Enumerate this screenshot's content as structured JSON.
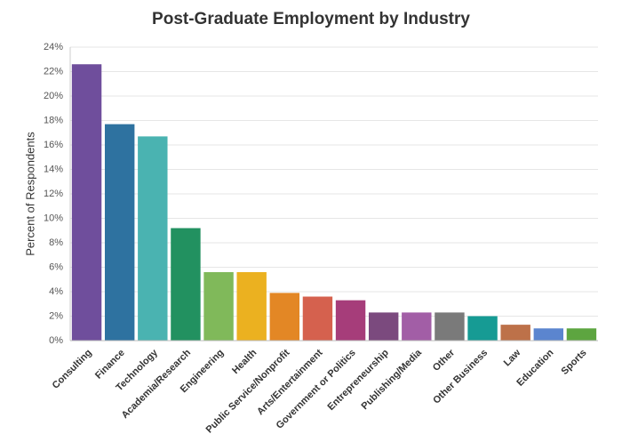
{
  "chart_data": {
    "type": "bar",
    "title": "Post-Graduate Employment by Industry",
    "y_label": "Percent of Respondents",
    "categories": [
      "Consulting",
      "Finance",
      "Technology",
      "Academia/Research",
      "Engineering",
      "Health",
      "Public Service/Nonprofit",
      "Arts/Entertainment",
      "Government or Politics",
      "Entrepreneurship",
      "Publishing/Media",
      "Other",
      "Other Business",
      "Law",
      "Education",
      "Sports"
    ],
    "values": [
      22.6,
      17.7,
      16.7,
      9.2,
      5.6,
      5.6,
      3.9,
      3.6,
      3.3,
      2.3,
      2.3,
      2.3,
      2.0,
      1.3,
      1.0,
      1.0
    ],
    "colors": [
      "#6f4e9c",
      "#2e72a0",
      "#4ab3b1",
      "#229160",
      "#80b95a",
      "#ebb120",
      "#e38725",
      "#d5614e",
      "#a63d7a",
      "#7b4a7e",
      "#a25ea6",
      "#7a7a7a",
      "#169b94",
      "#bd7149",
      "#5b85cf",
      "#5da540"
    ],
    "ylim": [
      0,
      24
    ],
    "yticks": [
      {
        "value": 0,
        "label": "0%"
      },
      {
        "value": 2,
        "label": "2%"
      },
      {
        "value": 4,
        "label": "4%"
      },
      {
        "value": 6,
        "label": "6%"
      },
      {
        "value": 8,
        "label": "8%"
      },
      {
        "value": 10,
        "label": "10%"
      },
      {
        "value": 12,
        "label": "12%"
      },
      {
        "value": 14,
        "label": "14%"
      },
      {
        "value": 16,
        "label": "16%"
      },
      {
        "value": 18,
        "label": "18%"
      },
      {
        "value": 20,
        "label": "20%"
      },
      {
        "value": 22,
        "label": "22%"
      },
      {
        "value": 24,
        "label": "24%"
      }
    ],
    "grid": true
  }
}
